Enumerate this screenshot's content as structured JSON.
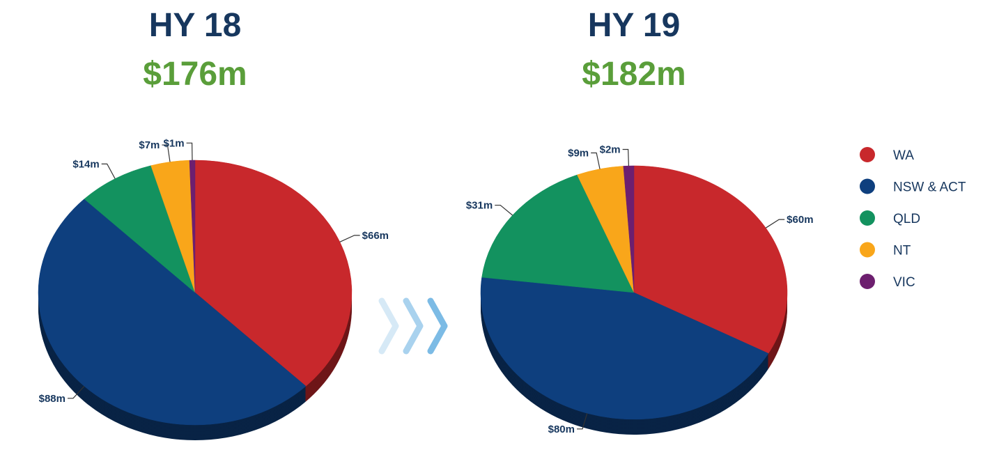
{
  "chart_data": [
    {
      "type": "pie",
      "title": "HY 18",
      "subtitle": "$176m",
      "values": [
        66,
        88,
        14,
        7,
        1
      ],
      "value_labels": [
        "$66m",
        "$88m",
        "$14m",
        "$7m",
        "$1m"
      ]
    },
    {
      "type": "pie",
      "title": "HY 19",
      "subtitle": "$182m",
      "values": [
        60,
        80,
        31,
        9,
        2
      ],
      "value_labels": [
        "$60m",
        "$80m",
        "$31m",
        "$9m",
        "$2m"
      ]
    }
  ],
  "legend": {
    "position": "right",
    "categories": [
      "WA",
      "NSW & ACT",
      "QLD",
      "NT",
      "VIC"
    ],
    "colors": [
      "#c8282c",
      "#0e3f7e",
      "#13925f",
      "#f9a61a",
      "#6d1f6f"
    ]
  }
}
